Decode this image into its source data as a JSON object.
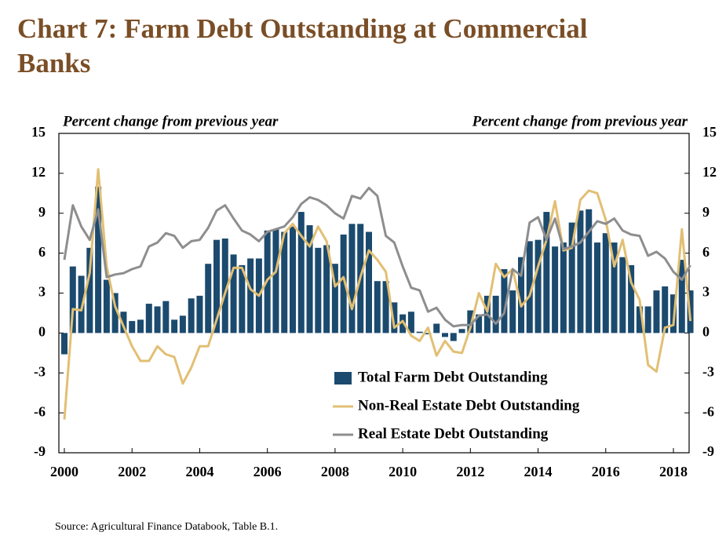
{
  "chart_data": {
    "type": "bar-line",
    "title": "Chart 7: Farm Debt Outstanding at Commercial Banks",
    "y_label": "Percent change from previous year",
    "y2_label": "Percent change from previous year",
    "source": "Source: Agricultural Finance Databook, Table B.1.",
    "categories": [
      "2000",
      null,
      null,
      null,
      null,
      null,
      null,
      null,
      "2002",
      null,
      null,
      null,
      null,
      null,
      null,
      null,
      "2004",
      null,
      null,
      null,
      null,
      null,
      null,
      null,
      "2006",
      null,
      null,
      null,
      null,
      null,
      null,
      null,
      "2008",
      null,
      null,
      null,
      null,
      null,
      null,
      null,
      "2010",
      null,
      null,
      null,
      null,
      null,
      null,
      null,
      "2012",
      null,
      null,
      null,
      null,
      null,
      null,
      null,
      "2014",
      null,
      null,
      null,
      null,
      null,
      null,
      null,
      "2016",
      null,
      null,
      null,
      null,
      null,
      null,
      null,
      "2018",
      null,
      null
    ],
    "series": [
      {
        "name": "Total Farm Debt Outstanding",
        "kind": "bar",
        "color": "#1b4a6e",
        "values": [
          -1.6,
          5.0,
          4.3,
          6.4,
          11.0,
          4.0,
          3.0,
          1.6,
          0.9,
          1.0,
          2.2,
          2.0,
          2.4,
          1.0,
          1.3,
          2.6,
          2.8,
          5.2,
          7.0,
          7.1,
          5.9,
          5.1,
          5.6,
          5.6,
          7.7,
          7.8,
          7.6,
          8.0,
          9.1,
          8.1,
          6.4,
          6.6,
          5.2,
          7.4,
          8.2,
          8.2,
          7.6,
          3.9,
          3.9,
          2.3,
          1.4,
          1.6,
          0.1,
          -0.1,
          0.7,
          -0.3,
          -0.6,
          0.3,
          1.7,
          1.4,
          2.8,
          2.8,
          4.8,
          3.2,
          5.7,
          6.9,
          7.0,
          9.1,
          6.5,
          6.8,
          8.3,
          9.2,
          9.3,
          6.8,
          7.5,
          6.8,
          5.7,
          5.1,
          2.0,
          2.0,
          3.2,
          3.5,
          2.9,
          5.5,
          3.2
        ]
      },
      {
        "name": "Non-Real Estate Debt Outstanding",
        "kind": "line",
        "color": "#e2bf73",
        "values": [
          -6.5,
          1.8,
          1.7,
          4.5,
          12.3,
          5.0,
          2.0,
          0.5,
          -1.0,
          -2.1,
          -2.1,
          -1.0,
          -1.6,
          -1.8,
          -3.8,
          -2.6,
          -1.0,
          -1.0,
          1.0,
          3.0,
          4.9,
          4.9,
          3.3,
          2.8,
          4.0,
          4.6,
          7.5,
          8.2,
          7.3,
          6.5,
          8.0,
          6.9,
          3.5,
          4.2,
          1.8,
          4.2,
          6.2,
          5.5,
          4.6,
          0.4,
          0.9,
          -0.2,
          -0.6,
          0.4,
          -1.7,
          -0.6,
          -1.4,
          -1.5,
          0.4,
          3.0,
          1.6,
          5.2,
          4.2,
          4.8,
          2.0,
          2.8,
          5.0,
          7.0,
          9.9,
          6.2,
          6.4,
          10.0,
          10.7,
          10.5,
          8.5,
          5.0,
          7.0,
          3.8,
          2.5,
          -2.4,
          -2.9,
          0.4,
          0.6,
          7.8,
          0.9
        ]
      },
      {
        "name": "Real Estate Debt Outstanding",
        "kind": "line",
        "color": "#8e8e8e",
        "values": [
          5.5,
          9.6,
          8.0,
          7.0,
          9.3,
          4.2,
          4.4,
          4.5,
          4.8,
          5.0,
          6.5,
          6.8,
          7.5,
          7.3,
          6.4,
          6.9,
          7.0,
          7.9,
          9.2,
          9.6,
          8.6,
          7.7,
          7.4,
          6.9,
          7.6,
          7.8,
          8.0,
          8.7,
          9.7,
          10.2,
          10.0,
          9.6,
          9.0,
          8.6,
          10.3,
          10.1,
          10.9,
          10.3,
          7.3,
          6.8,
          5.0,
          3.4,
          3.2,
          1.6,
          1.9,
          1.0,
          0.5,
          0.6,
          0.6,
          1.3,
          1.4,
          0.7,
          1.5,
          4.8,
          4.3,
          8.3,
          8.7,
          7.0,
          8.6,
          6.3,
          6.5,
          6.8,
          7.6,
          8.4,
          8.2,
          8.6,
          7.7,
          7.4,
          7.3,
          5.8,
          6.1,
          5.6,
          4.6,
          4.0,
          5.1
        ]
      }
    ],
    "ylim": [
      -9,
      15
    ],
    "yticks": [
      -9,
      -6,
      -3,
      0,
      3,
      6,
      9,
      12,
      15
    ],
    "y2lim": [
      -9,
      15
    ],
    "y2ticks": [
      -9,
      -6,
      -3,
      0,
      3,
      6,
      9,
      12,
      15
    ],
    "legend": "lower right"
  }
}
